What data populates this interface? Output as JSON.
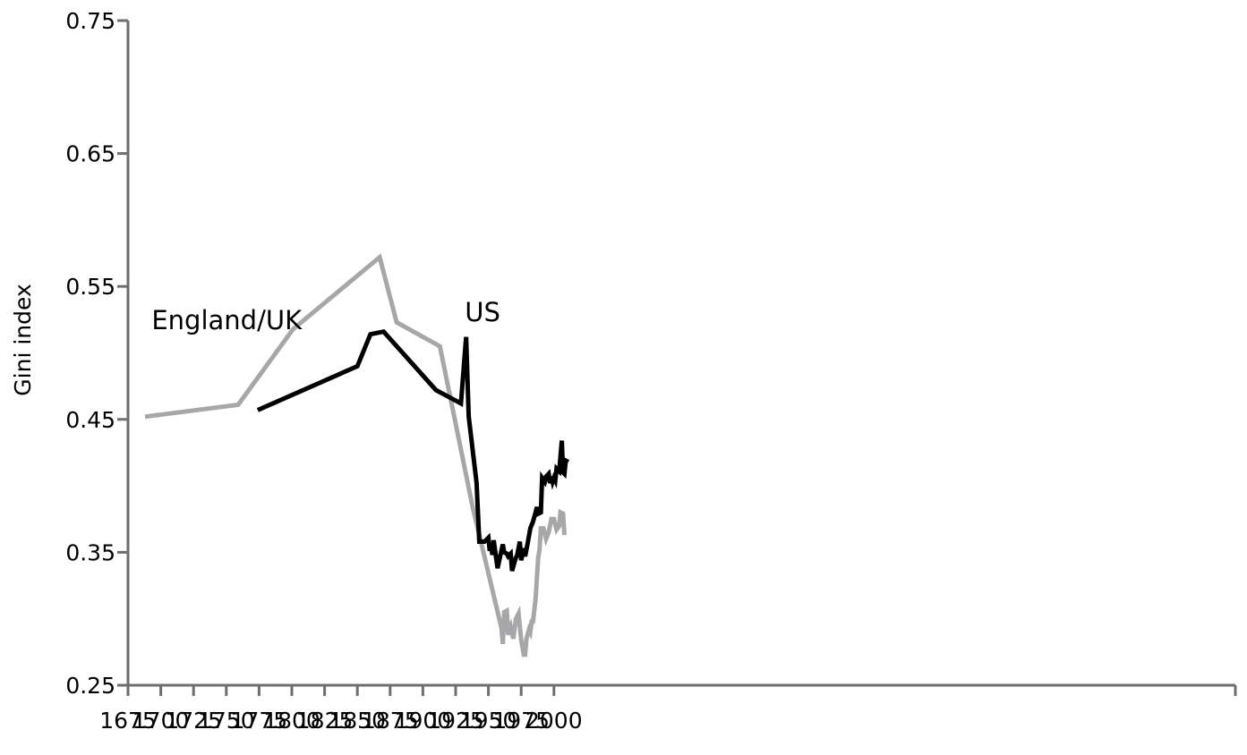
{
  "chart_data": {
    "type": "line",
    "title": "",
    "xlabel": "",
    "ylabel": "Gini index",
    "xlim": [
      1675,
      2012
    ],
    "ylim": [
      0.25,
      0.75
    ],
    "x_ticks": [
      "1675",
      "1700",
      "1725",
      "1750",
      "1775",
      "1800",
      "1825",
      "1850",
      "1875",
      "1900",
      "1925",
      "1950",
      "1975",
      "2000"
    ],
    "y_ticks": [
      "0.25",
      "0.35",
      "0.45",
      "0.55",
      "0.65",
      "0.75"
    ],
    "grid": false,
    "legend": "none",
    "series": [
      {
        "name": "England/UK",
        "color": "#a7a7a9",
        "label_position": {
          "x": 1693,
          "y": 0.518
        },
        "points": [
          [
            1688,
            0.452
          ],
          [
            1759,
            0.461
          ],
          [
            1801,
            0.518
          ],
          [
            1867,
            0.572
          ],
          [
            1880,
            0.523
          ],
          [
            1913,
            0.505
          ],
          [
            1938,
            0.384
          ],
          [
            1960,
            0.293
          ],
          [
            1961,
            0.281
          ],
          [
            1962,
            0.305
          ],
          [
            1964,
            0.306
          ],
          [
            1965,
            0.288
          ],
          [
            1967,
            0.294
          ],
          [
            1969,
            0.285
          ],
          [
            1971,
            0.3
          ],
          [
            1973,
            0.304
          ],
          [
            1975,
            0.284
          ],
          [
            1977,
            0.273
          ],
          [
            1978,
            0.273
          ],
          [
            1979,
            0.285
          ],
          [
            1981,
            0.292
          ],
          [
            1982,
            0.29
          ],
          [
            1983,
            0.298
          ],
          [
            1984,
            0.298
          ],
          [
            1986,
            0.315
          ],
          [
            1988,
            0.346
          ],
          [
            1989,
            0.352
          ],
          [
            1990,
            0.368
          ],
          [
            1992,
            0.368
          ],
          [
            1994,
            0.36
          ],
          [
            1996,
            0.365
          ],
          [
            1998,
            0.375
          ],
          [
            2000,
            0.375
          ],
          [
            2002,
            0.367
          ],
          [
            2004,
            0.37
          ],
          [
            2005,
            0.38
          ],
          [
            2007,
            0.379
          ],
          [
            2008,
            0.363
          ]
        ]
      },
      {
        "name": "US",
        "color": "#000000",
        "label_position": {
          "x": 1932,
          "y": 0.524
        },
        "points": [
          [
            1774,
            0.457
          ],
          [
            1850,
            0.49
          ],
          [
            1860,
            0.514
          ],
          [
            1870,
            0.516
          ],
          [
            1910,
            0.472
          ],
          [
            1929,
            0.462
          ],
          [
            1933,
            0.512
          ],
          [
            1935,
            0.452
          ],
          [
            1941,
            0.402
          ],
          [
            1943,
            0.358
          ],
          [
            1947,
            0.358
          ],
          [
            1950,
            0.361
          ],
          [
            1951,
            0.351
          ],
          [
            1952,
            0.357
          ],
          [
            1953,
            0.348
          ],
          [
            1954,
            0.359
          ],
          [
            1957,
            0.338
          ],
          [
            1961,
            0.356
          ],
          [
            1962,
            0.35
          ],
          [
            1964,
            0.349
          ],
          [
            1965,
            0.347
          ],
          [
            1967,
            0.349
          ],
          [
            1968,
            0.336
          ],
          [
            1970,
            0.343
          ],
          [
            1971,
            0.346
          ],
          [
            1972,
            0.348
          ],
          [
            1974,
            0.358
          ],
          [
            1975,
            0.344
          ],
          [
            1977,
            0.353
          ],
          [
            1978,
            0.347
          ],
          [
            1980,
            0.357
          ],
          [
            1982,
            0.368
          ],
          [
            1984,
            0.373
          ],
          [
            1986,
            0.38
          ],
          [
            1987,
            0.384
          ],
          [
            1988,
            0.379
          ],
          [
            1990,
            0.38
          ],
          [
            1991,
            0.406
          ],
          [
            1993,
            0.403
          ],
          [
            1994,
            0.407
          ],
          [
            1996,
            0.409
          ],
          [
            1997,
            0.402
          ],
          [
            1998,
            0.407
          ],
          [
            1999,
            0.403
          ],
          [
            2000,
            0.406
          ],
          [
            2001,
            0.404
          ],
          [
            2002,
            0.413
          ],
          [
            2004,
            0.411
          ],
          [
            2006,
            0.434
          ],
          [
            2007,
            0.41
          ],
          [
            2008,
            0.409
          ],
          [
            2009,
            0.419
          ],
          [
            2011,
            0.418
          ]
        ]
      }
    ]
  }
}
